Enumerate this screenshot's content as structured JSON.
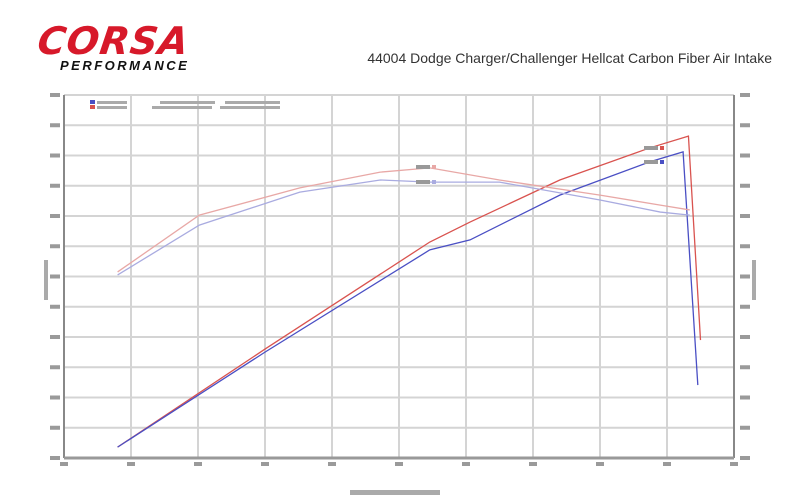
{
  "logo": {
    "brand": "CORSA",
    "sub": "PERFORMANCE",
    "brand_color": "#d7192a"
  },
  "header": {
    "title": "44004 Dodge Charger/Challenger Hellcat Carbon Fiber Air Intake"
  },
  "chart_data": {
    "type": "line",
    "title": "44004 Dodge Charger/Challenger Hellcat Carbon Fiber Air Intake",
    "xlabel": "",
    "ylabel": "",
    "xlim": [
      2.0,
      7.0
    ],
    "ylim": [
      0,
      12
    ],
    "grid": true,
    "legend": "top-left",
    "series": [
      {
        "color": "#d9534f",
        "x": [
          2.4,
          3.5,
          4.73,
          5.03,
          5.7,
          6.37,
          6.66,
          6.75
        ],
        "y": [
          0.36,
          3.6,
          7.14,
          7.8,
          9.19,
          10.25,
          10.64,
          3.9
        ]
      },
      {
        "color": "#4a4fc4",
        "x": [
          2.4,
          3.5,
          4.73,
          5.03,
          5.7,
          6.37,
          6.62,
          6.73
        ],
        "y": [
          0.36,
          3.5,
          6.88,
          7.21,
          8.69,
          9.79,
          10.12,
          2.41
        ]
      },
      {
        "color": "#e8a8a6",
        "x": [
          2.4,
          3.01,
          3.76,
          4.36,
          4.73,
          5.25,
          6.0,
          6.45,
          6.67
        ],
        "y": [
          6.15,
          8.03,
          8.93,
          9.45,
          9.59,
          9.19,
          8.69,
          8.36,
          8.2
        ]
      },
      {
        "color": "#a9abe0",
        "x": [
          2.4,
          3.01,
          3.76,
          4.36,
          4.73,
          5.25,
          6.0,
          6.45,
          6.67
        ],
        "y": [
          6.05,
          7.7,
          8.79,
          9.19,
          9.12,
          9.12,
          8.53,
          8.13,
          8.03
        ]
      }
    ]
  }
}
